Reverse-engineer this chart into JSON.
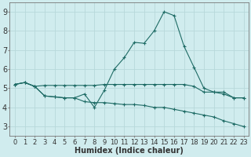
{
  "x": [
    0,
    1,
    2,
    3,
    4,
    5,
    6,
    7,
    8,
    9,
    10,
    11,
    12,
    13,
    14,
    15,
    16,
    17,
    18,
    19,
    20,
    21,
    22,
    23
  ],
  "line_flat": [
    5.2,
    5.3,
    5.1,
    5.15,
    5.15,
    5.15,
    5.15,
    5.15,
    5.15,
    5.2,
    5.2,
    5.2,
    5.2,
    5.2,
    5.2,
    5.2,
    5.2,
    5.2,
    5.1,
    4.8,
    4.8,
    4.8,
    4.5,
    4.5
  ],
  "line_peak": [
    5.2,
    5.3,
    5.1,
    4.6,
    4.55,
    4.5,
    4.5,
    4.7,
    4.0,
    4.9,
    6.0,
    6.6,
    7.4,
    7.35,
    8.0,
    9.0,
    8.8,
    7.2,
    6.1,
    5.0,
    4.8,
    4.7,
    4.5,
    4.5
  ],
  "line_diag": [
    5.2,
    5.3,
    5.1,
    4.6,
    4.55,
    4.5,
    4.5,
    4.3,
    4.25,
    4.25,
    4.2,
    4.15,
    4.15,
    4.1,
    4.0,
    4.0,
    3.9,
    3.8,
    3.7,
    3.6,
    3.5,
    3.3,
    3.15,
    3.0
  ],
  "bg_color": "#d0ecee",
  "grid_color": "#b8d8da",
  "line_color": "#1e6b65",
  "xlabel": "Humidex (Indice chaleur)",
  "xlabel_fontsize": 7,
  "tick_fontsize": 6,
  "ylim": [
    2.5,
    9.5
  ],
  "xlim": [
    -0.5,
    23.5
  ],
  "yticks": [
    3,
    4,
    5,
    6,
    7,
    8,
    9
  ]
}
